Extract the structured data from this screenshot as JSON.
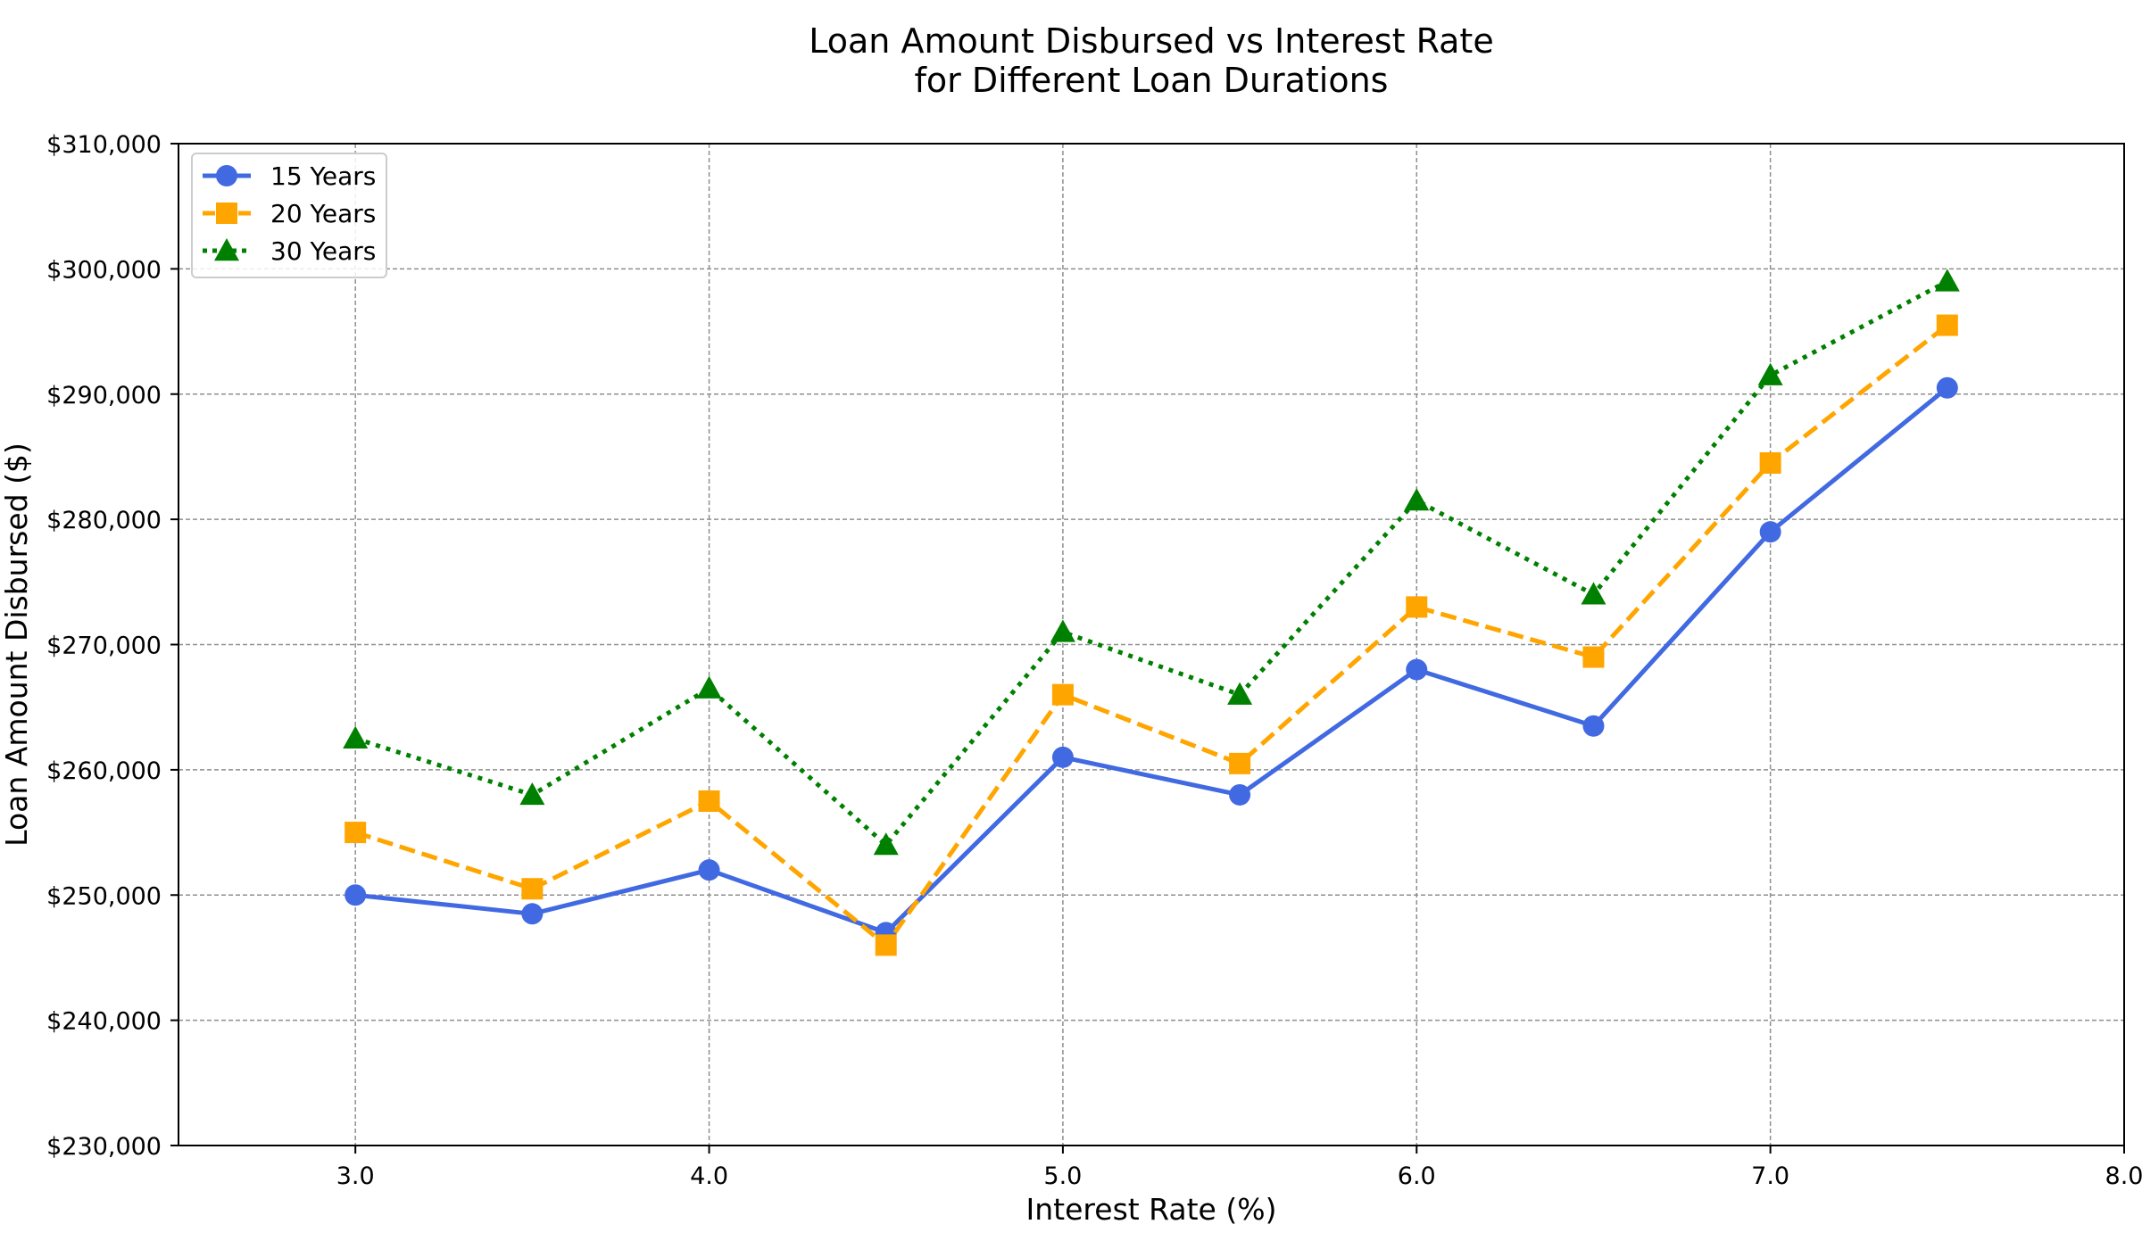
{
  "chart_data": {
    "type": "line",
    "title_lines": [
      "Loan Amount Disbursed vs Interest Rate",
      "for Different Loan Durations"
    ],
    "xlabel": "Interest Rate (%)",
    "ylabel": "Loan Amount Disbursed ($)",
    "x": [
      3.0,
      3.5,
      4.0,
      4.5,
      5.0,
      5.5,
      6.0,
      6.5,
      7.0,
      7.5
    ],
    "xlim": [
      2.5,
      8.0
    ],
    "ylim": [
      230000,
      310000
    ],
    "xticks": [
      3.0,
      4.0,
      5.0,
      6.0,
      7.0,
      8.0
    ],
    "xtick_labels": [
      "3.0",
      "4.0",
      "5.0",
      "6.0",
      "7.0",
      "8.0"
    ],
    "yticks": [
      230000,
      240000,
      250000,
      260000,
      270000,
      280000,
      290000,
      300000,
      310000
    ],
    "ytick_labels": [
      "$230,000",
      "$240,000",
      "$250,000",
      "$260,000",
      "$270,000",
      "$280,000",
      "$290,000",
      "$300,000",
      "$310,000"
    ],
    "grid": true,
    "legend_position": "top-left",
    "series": [
      {
        "name": "15 Years",
        "color": "#4169e1",
        "line_style": "solid",
        "marker": "circle",
        "values": [
          250000,
          248500,
          252000,
          247000,
          261000,
          258000,
          268000,
          263500,
          279000,
          290500
        ]
      },
      {
        "name": "20 Years",
        "color": "#ffa500",
        "line_style": "dashed",
        "marker": "square",
        "values": [
          255000,
          250500,
          257500,
          246000,
          266000,
          260500,
          273000,
          269000,
          284500,
          295500
        ]
      },
      {
        "name": "30 Years",
        "color": "#008000",
        "line_style": "dotted",
        "marker": "triangle",
        "values": [
          262500,
          258000,
          266500,
          254000,
          271000,
          266000,
          281500,
          274000,
          291500,
          299000
        ]
      }
    ]
  }
}
